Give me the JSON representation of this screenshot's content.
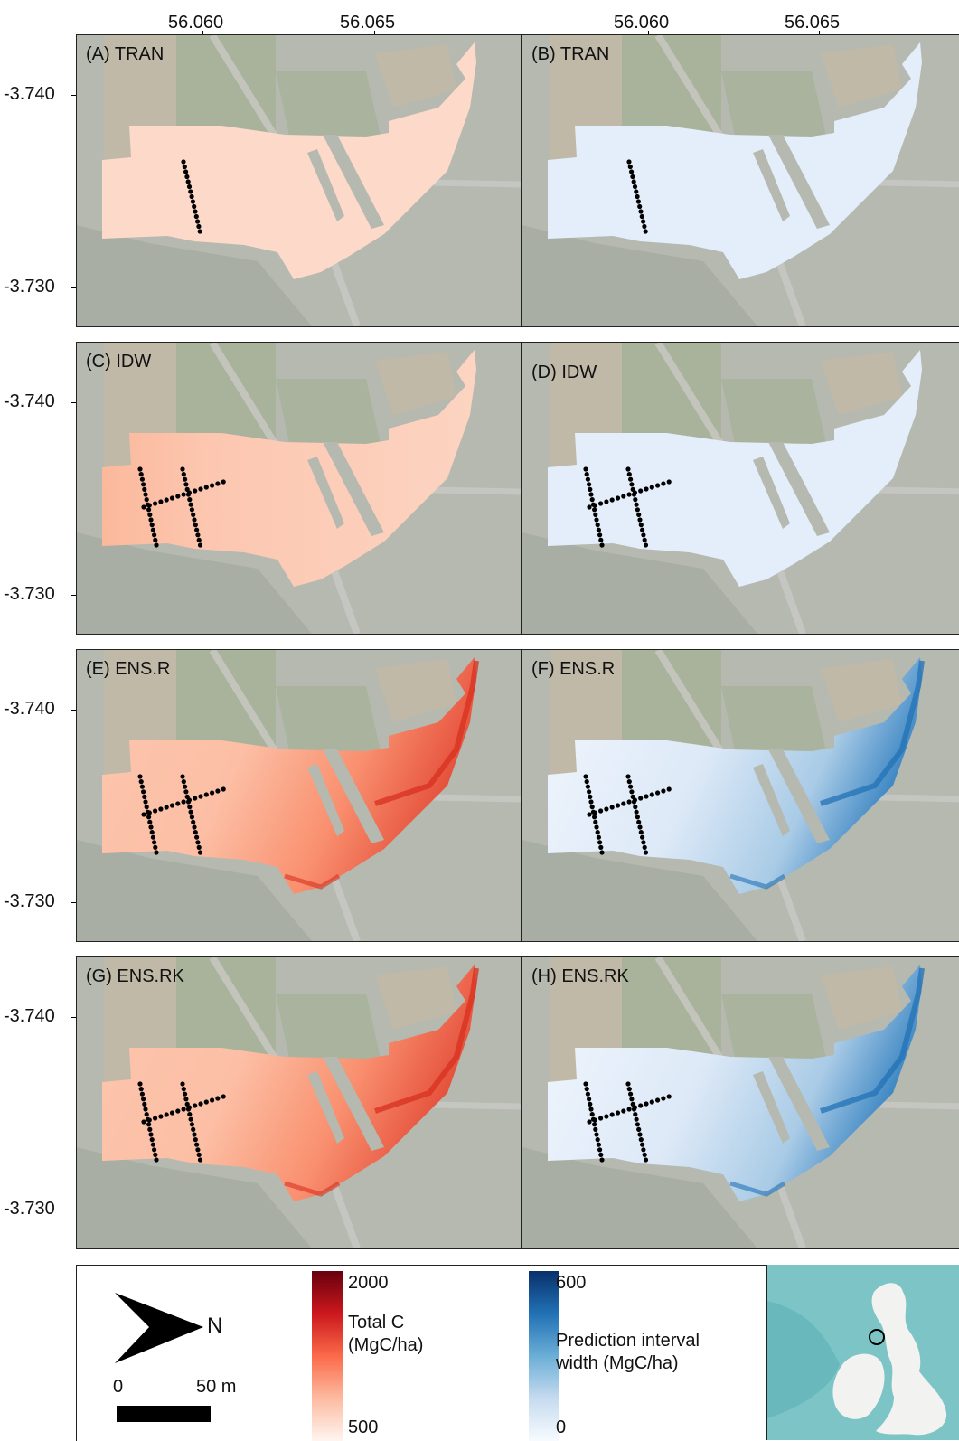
{
  "axes": {
    "x_ticks": [
      "56.060",
      "56.065"
    ],
    "y_ticks": [
      "-3.740",
      "-3.730"
    ]
  },
  "panels": [
    {
      "id": "A",
      "label": "(A) TRAN",
      "variable": "total_c",
      "sampling": "single-transect",
      "pattern": "uniform"
    },
    {
      "id": "B",
      "label": "(B) TRAN",
      "variable": "interval",
      "sampling": "single-transect",
      "pattern": "uniform"
    },
    {
      "id": "C",
      "label": "(C) IDW",
      "variable": "total_c",
      "sampling": "cross-transects",
      "pattern": "idw"
    },
    {
      "id": "D",
      "label": "(D) IDW",
      "variable": "interval",
      "sampling": "cross-transects",
      "pattern": "uniform"
    },
    {
      "id": "E",
      "label": "(E) ENS.R",
      "variable": "total_c",
      "sampling": "cross-transects",
      "pattern": "variable"
    },
    {
      "id": "F",
      "label": "(F) ENS.R",
      "variable": "interval",
      "sampling": "cross-transects",
      "pattern": "variable"
    },
    {
      "id": "G",
      "label": "(G) ENS.RK",
      "variable": "total_c",
      "sampling": "cross-transects",
      "pattern": "variable"
    },
    {
      "id": "H",
      "label": "(H) ENS.RK",
      "variable": "interval",
      "sampling": "cross-transects",
      "pattern": "variable"
    }
  ],
  "legend": {
    "north_label": "N",
    "scale_start": "0",
    "scale_end": "50 m",
    "total_c": {
      "max": "2000",
      "min": "500",
      "title_line1": "Total C",
      "title_line2": "(MgC/ha)",
      "colors": [
        "#67000d",
        "#cb181d",
        "#fb6a4a",
        "#fcbba1",
        "#fff5f0"
      ]
    },
    "interval": {
      "max": "600",
      "min": "0",
      "title_line1": "Prediction interval",
      "title_line2": "width (MgC/ha)",
      "colors": [
        "#08306b",
        "#2171b5",
        "#6baed6",
        "#c6dbef",
        "#f7fbff"
      ]
    }
  },
  "colors": {
    "map_background": "#b5b9b0",
    "field_green": "#9fae8c",
    "field_tan": "#c9b9a4"
  }
}
